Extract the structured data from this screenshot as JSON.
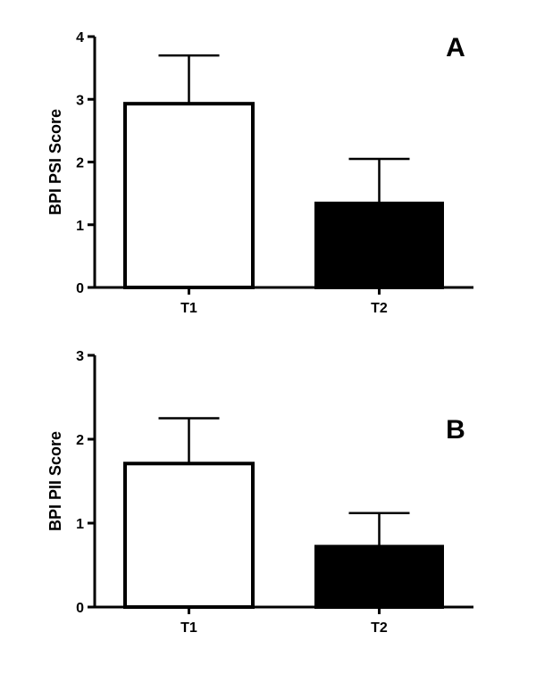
{
  "chart_data": [
    {
      "type": "bar",
      "panel_label": "A",
      "title": "",
      "xlabel": "",
      "ylabel": "BPI PSI Score",
      "categories": [
        "T1",
        "T2"
      ],
      "values": [
        2.93,
        1.34
      ],
      "error_upper": [
        0.77,
        0.71
      ],
      "bar_fill": [
        "#ffffff",
        "#000000"
      ],
      "ylim": [
        0,
        4
      ],
      "yticks": [
        0,
        1,
        2,
        3,
        4
      ],
      "grid": false,
      "legend": "none"
    },
    {
      "type": "bar",
      "panel_label": "B",
      "title": "",
      "xlabel": "",
      "ylabel": "BPI PII Score",
      "categories": [
        "T1",
        "T2"
      ],
      "values": [
        1.71,
        0.72
      ],
      "error_upper": [
        0.54,
        0.4
      ],
      "bar_fill": [
        "#ffffff",
        "#000000"
      ],
      "ylim": [
        0,
        3
      ],
      "yticks": [
        0,
        1,
        2,
        3
      ],
      "grid": false,
      "legend": "none"
    }
  ]
}
